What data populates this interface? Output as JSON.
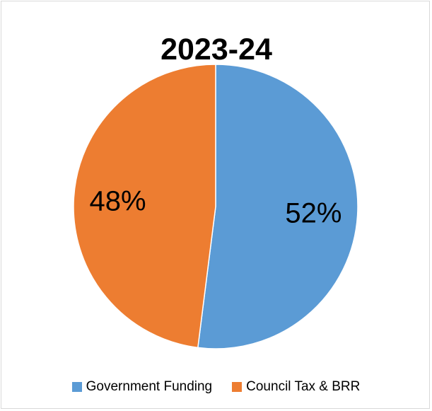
{
  "chart_data": {
    "type": "pie",
    "title": "2023-24",
    "categories": [
      "Government Funding",
      "Council Tax & BRR"
    ],
    "values": [
      52,
      48
    ],
    "data_labels": [
      "52%",
      "48%"
    ],
    "colors": [
      "#5b9bd5",
      "#ed7d31"
    ],
    "legend_position": "bottom",
    "start_angle": "12 o'clock",
    "direction": "clockwise"
  }
}
